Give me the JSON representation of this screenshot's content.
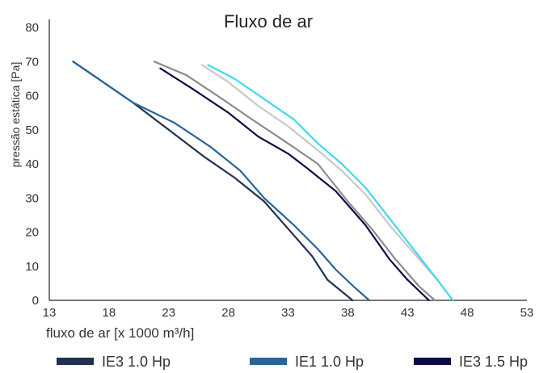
{
  "chart_data": {
    "type": "line",
    "title": "Fluxo de ar",
    "xlabel": "fluxo de ar [x 1000 m³/h]",
    "ylabel": "pressão estática [Pa]",
    "xlim": [
      13,
      53
    ],
    "ylim": [
      0,
      80
    ],
    "x_ticks": [
      "13",
      "18",
      "23",
      "28",
      "33",
      "38",
      "43",
      "48",
      "53"
    ],
    "y_ticks": [
      "0",
      "10",
      "20",
      "30",
      "40",
      "50",
      "60",
      "70",
      "80"
    ],
    "grid": false,
    "legend_position": "bottom",
    "series": [
      {
        "name": "IE3 1.0 Hp",
        "color": "#1f3350",
        "in_legend": true,
        "points": [
          [
            15.0,
            70
          ],
          [
            17.5,
            64
          ],
          [
            20.0,
            58
          ],
          [
            23.0,
            50
          ],
          [
            26.0,
            42
          ],
          [
            28.5,
            36
          ],
          [
            31.0,
            29
          ],
          [
            33.0,
            21
          ],
          [
            35.0,
            13
          ],
          [
            36.3,
            6
          ],
          [
            38.4,
            0
          ]
        ]
      },
      {
        "name": "IE1 1.0 Hp",
        "color": "#2a6496",
        "in_legend": true,
        "points": [
          [
            15.0,
            70
          ],
          [
            17.5,
            64
          ],
          [
            20.0,
            58
          ],
          [
            23.5,
            52
          ],
          [
            26.5,
            45
          ],
          [
            29.0,
            38
          ],
          [
            31.0,
            30
          ],
          [
            33.5,
            22
          ],
          [
            35.5,
            15
          ],
          [
            37.0,
            9
          ],
          [
            38.5,
            4
          ],
          [
            39.8,
            0
          ]
        ]
      },
      {
        "name": "IE3 1.5 Hp",
        "color": "#0c0c45",
        "in_legend": true,
        "points": [
          [
            22.3,
            68
          ],
          [
            25.0,
            62
          ],
          [
            28.0,
            55
          ],
          [
            30.5,
            48
          ],
          [
            33.0,
            43
          ],
          [
            34.5,
            39
          ],
          [
            37.0,
            32
          ],
          [
            39.5,
            22
          ],
          [
            41.5,
            12
          ],
          [
            43.0,
            6
          ],
          [
            44.8,
            0
          ]
        ]
      },
      {
        "name": "",
        "color": "#8c8c8c",
        "in_legend": false,
        "points": [
          [
            21.8,
            70
          ],
          [
            24.5,
            66
          ],
          [
            27.5,
            59
          ],
          [
            30.0,
            53
          ],
          [
            33.0,
            46
          ],
          [
            35.5,
            40
          ],
          [
            38.0,
            29
          ],
          [
            40.0,
            21
          ],
          [
            42.0,
            12
          ],
          [
            44.0,
            4
          ],
          [
            45.3,
            0
          ]
        ]
      },
      {
        "name": "",
        "color": "#c8c8c8",
        "in_legend": false,
        "points": [
          [
            25.8,
            69
          ],
          [
            28.0,
            64
          ],
          [
            30.5,
            57
          ],
          [
            33.0,
            51
          ],
          [
            35.5,
            44
          ],
          [
            37.5,
            38
          ],
          [
            39.5,
            31
          ],
          [
            41.5,
            22
          ],
          [
            43.5,
            14
          ],
          [
            45.5,
            6
          ],
          [
            46.8,
            0
          ]
        ]
      },
      {
        "name": "",
        "color": "#3fd8f0",
        "in_legend": false,
        "points": [
          [
            26.3,
            69
          ],
          [
            28.5,
            65
          ],
          [
            31.0,
            59
          ],
          [
            33.5,
            53
          ],
          [
            35.5,
            46
          ],
          [
            37.5,
            40
          ],
          [
            39.5,
            33
          ],
          [
            41.5,
            24
          ],
          [
            43.5,
            15
          ],
          [
            45.5,
            6
          ],
          [
            46.8,
            0
          ]
        ]
      }
    ]
  }
}
